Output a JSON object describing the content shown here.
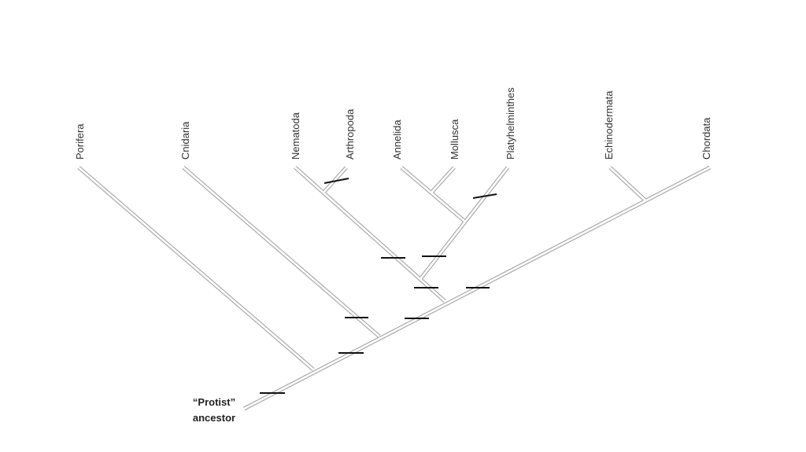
{
  "taxa": [
    "Porifera",
    "Cnidaria",
    "Nematoda",
    "Arthropoda",
    "Annelida",
    "Mollusca",
    "Platyhelminthes",
    "Echinodermata",
    "Chordata"
  ],
  "root": {
    "line1": "“Protist”",
    "line2": "ancestor"
  }
}
